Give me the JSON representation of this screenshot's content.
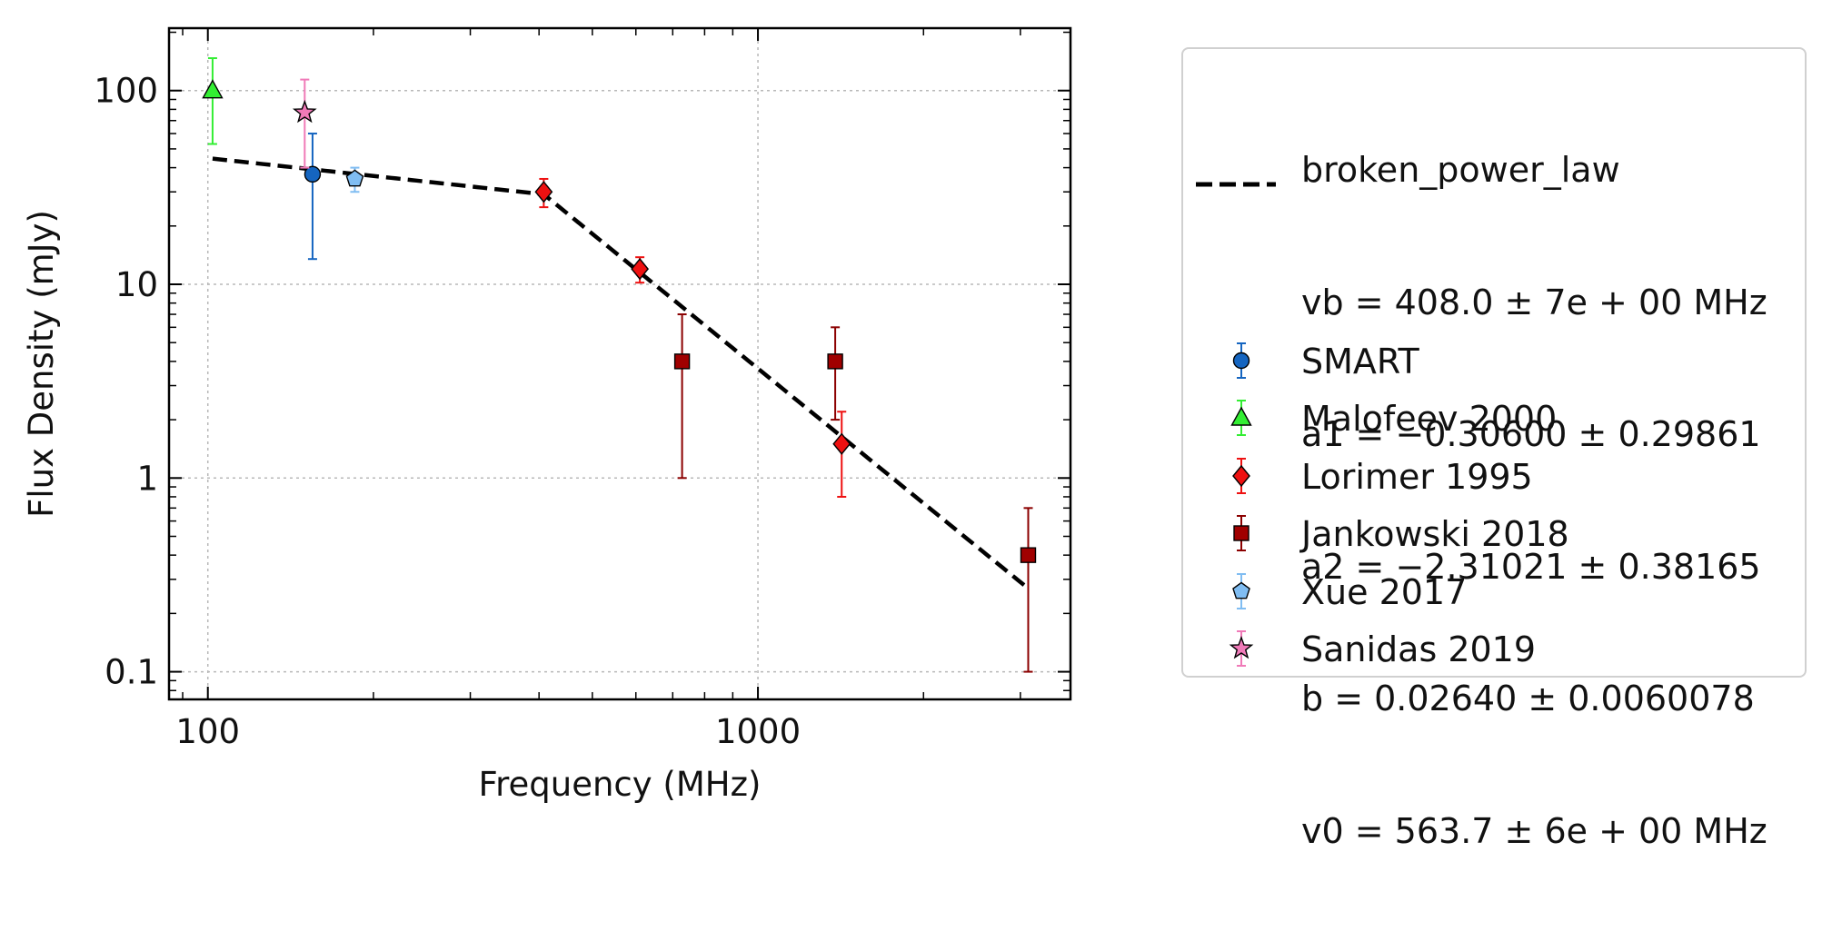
{
  "chart_data": {
    "type": "scatter",
    "xlabel": "Frequency (MHz)",
    "ylabel": "Flux Density (mJy)",
    "xscale": "log",
    "yscale": "log",
    "xlim": [
      85,
      3700
    ],
    "ylim": [
      0.072,
      210
    ],
    "xticks": [
      {
        "value": 100,
        "label": "100"
      },
      {
        "value": 1000,
        "label": "1000"
      }
    ],
    "yticks": [
      {
        "value": 0.1,
        "label": "0.1"
      },
      {
        "value": 1,
        "label": "1"
      },
      {
        "value": 10,
        "label": "10"
      },
      {
        "value": 100,
        "label": "100"
      }
    ],
    "grid": true,
    "legend_position": "outside-right",
    "fit": {
      "model": "broken_power_law",
      "lines": [
        "broken_power_law",
        "vb = 408.0 ± 7e + 00 MHz",
        "a1 = −0.30600 ± 0.29861",
        "a2 = −2.31021 ± 0.38165",
        "b = 0.02640 ± 0.0060078",
        "v0 = 563.7 ± 6e + 00 MHz"
      ],
      "vb": 408.0,
      "a1": -0.306,
      "a2": -2.31021,
      "b": 0.0264,
      "v0": 563.7,
      "x_range": [
        102,
        3100
      ],
      "color": "#000000",
      "style": "dashed"
    },
    "series": [
      {
        "name": "SMART",
        "marker": "circle",
        "color": "#1565c0",
        "ecolor": "#1565c0",
        "points": [
          {
            "x": 155,
            "y": 37,
            "ylo": 13.5,
            "yhi": 60
          }
        ]
      },
      {
        "name": "Malofeev 2000",
        "marker": "triangle",
        "color": "#33ee33",
        "ecolor": "#33ee33",
        "points": [
          {
            "x": 102,
            "y": 100,
            "ylo": 53,
            "yhi": 147
          }
        ]
      },
      {
        "name": "Lorimer 1995",
        "marker": "diamond",
        "color": "#ee1111",
        "ecolor": "#ee1111",
        "points": [
          {
            "x": 408,
            "y": 30,
            "ylo": 25,
            "yhi": 35
          },
          {
            "x": 610,
            "y": 12,
            "ylo": 10.2,
            "yhi": 13.8
          },
          {
            "x": 1420,
            "y": 1.5,
            "ylo": 0.8,
            "yhi": 2.2
          }
        ]
      },
      {
        "name": "Jankowski 2018",
        "marker": "square",
        "color": "#a00000",
        "ecolor": "#8b0000",
        "points": [
          {
            "x": 728,
            "y": 4,
            "ylo": 1,
            "yhi": 7
          },
          {
            "x": 1382,
            "y": 4,
            "ylo": 2,
            "yhi": 6
          },
          {
            "x": 3100,
            "y": 0.4,
            "ylo": 0.1,
            "yhi": 0.7
          }
        ]
      },
      {
        "name": "Xue 2017",
        "marker": "pentagon",
        "color": "#80bdf2",
        "ecolor": "#80bdf2",
        "points": [
          {
            "x": 185,
            "y": 35,
            "ylo": 30,
            "yhi": 40
          }
        ]
      },
      {
        "name": "Sanidas 2019",
        "marker": "star",
        "color": "#f07ab8",
        "ecolor": "#f07ab8",
        "points": [
          {
            "x": 150,
            "y": 77,
            "ylo": 40,
            "yhi": 114
          }
        ]
      }
    ]
  }
}
